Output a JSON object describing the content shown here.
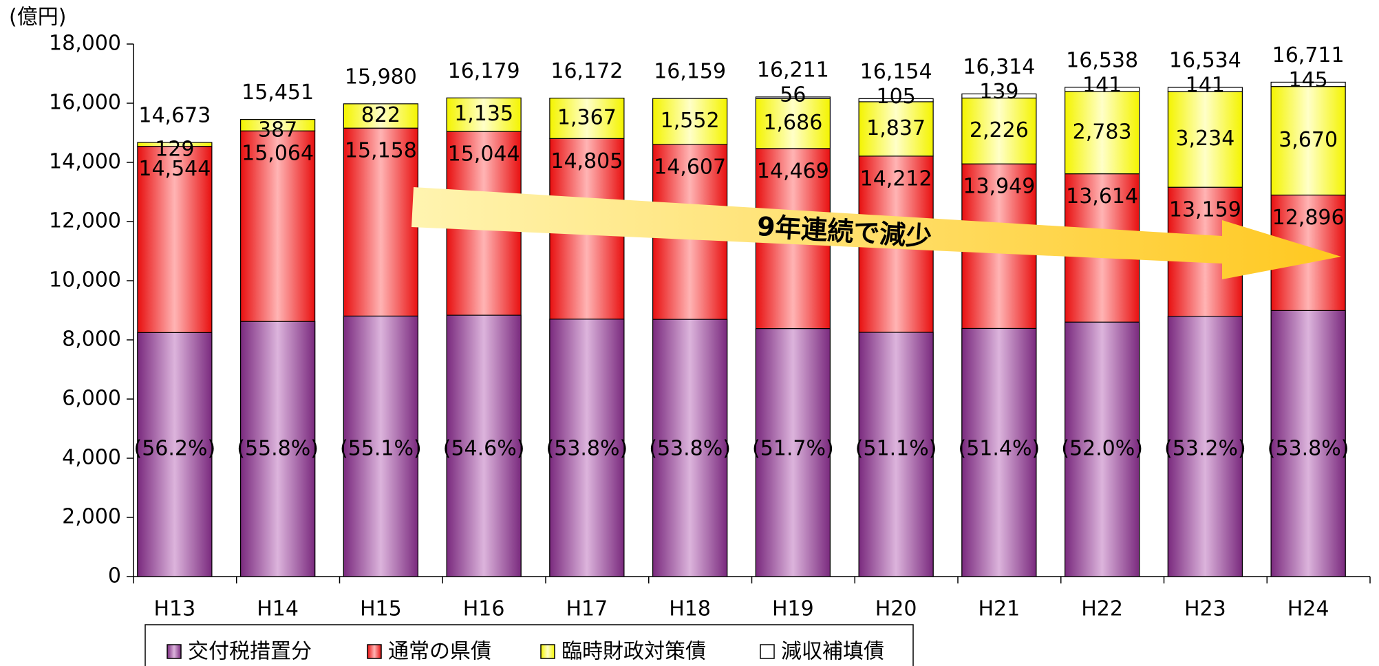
{
  "chart_data": {
    "type": "bar",
    "stacked": true,
    "y_label": "(億円)",
    "categories": [
      "H13",
      "H14",
      "H15",
      "H16",
      "H17",
      "H18",
      "H19",
      "H20",
      "H21",
      "H22",
      "H23",
      "H24"
    ],
    "totals": [
      14673,
      15451,
      15980,
      16179,
      16172,
      16159,
      16211,
      16154,
      16314,
      16538,
      16534,
      16711
    ],
    "series": [
      {
        "name": "交付税措置分",
        "color": "#9b4a9e",
        "unit": "percent of total",
        "values": [
          56.2,
          55.8,
          55.1,
          54.6,
          53.8,
          53.8,
          51.7,
          51.1,
          51.4,
          52.0,
          53.2,
          53.8
        ],
        "value_labels": [
          "(56.2%)",
          "(55.8%)",
          "(55.1%)",
          "(54.6%)",
          "(53.8%)",
          "(53.8%)",
          "(51.7%)",
          "(51.1%)",
          "(51.4%)",
          "(52.0%)",
          "(53.2%)",
          "(53.8%)"
        ]
      },
      {
        "name": "通常の県債",
        "color": "#ff3030",
        "values": [
          14544,
          15064,
          15158,
          15044,
          14805,
          14607,
          14469,
          14212,
          13949,
          13614,
          13159,
          12896
        ],
        "value_labels": [
          "14,544",
          "15,064",
          "15,158",
          "15,044",
          "14,805",
          "14,607",
          "14,469",
          "14,212",
          "13,949",
          "13,614",
          "13,159",
          "12,896"
        ]
      },
      {
        "name": "臨時財政対策債",
        "color": "#ffff40",
        "values": [
          129,
          387,
          822,
          1135,
          1367,
          1552,
          1686,
          1837,
          2226,
          2783,
          3234,
          3670
        ],
        "value_labels": [
          "129",
          "387",
          "822",
          "1,135",
          "1,367",
          "1,552",
          "1,686",
          "1,837",
          "2,226",
          "2,783",
          "3,234",
          "3,670"
        ]
      },
      {
        "name": "減収補填債",
        "color": "#ffffff",
        "values": [
          null,
          null,
          null,
          null,
          null,
          null,
          56,
          105,
          139,
          141,
          141,
          145
        ]
      }
    ],
    "total_labels": [
      "14,673",
      "15,451",
      "15,980",
      "16,179",
      "16,172",
      "16,159",
      "16,211",
      "16,154",
      "16,314",
      "16,538",
      "16,534",
      "16,711"
    ],
    "annotation": "9年連続で減少",
    "ylim": [
      0,
      18000
    ],
    "yticks": [
      0,
      {
        "value": 2000,
        "label": "2,000"
      },
      {
        "value": 4000,
        "label": "4,000"
      },
      {
        "value": 6000,
        "label": "6,000"
      },
      {
        "value": 8000,
        "label": "8,000"
      },
      {
        "value": 10000,
        "label": "10,000"
      },
      {
        "value": 12000,
        "label": "12,000"
      },
      {
        "value": 14000,
        "label": "14,000"
      },
      {
        "value": 16000,
        "label": "16,000"
      },
      {
        "value": 18000,
        "label": "18,000"
      }
    ],
    "legend": "bottom"
  }
}
